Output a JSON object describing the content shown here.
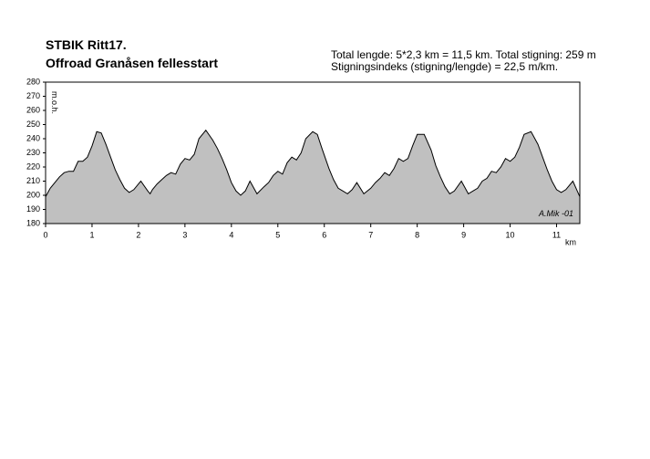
{
  "chart_data": {
    "type": "area",
    "title": "STBIK Ritt17.",
    "subtitle": "Offroad Granåsen fellesstart",
    "notes": [
      "Total lengde: 5*2,3 km = 11,5 km. Total stigning: 259 m",
      "Stigningsindeks (stigning/lengde) = 22,5 m/km."
    ],
    "annotation": "A.Mik -01",
    "xlabel": "km",
    "ylabel": "m.o.h.",
    "color": "#c0c0c0",
    "x": [
      0,
      0.1,
      0.2,
      0.3,
      0.4,
      0.5,
      0.6,
      0.7,
      0.8,
      0.9,
      1.0,
      1.1,
      1.2,
      1.3,
      1.4,
      1.5,
      1.6,
      1.7,
      1.8,
      1.9,
      2.0,
      2.05,
      2.2,
      2.25,
      2.3,
      2.4,
      2.5,
      2.6,
      2.7,
      2.8,
      2.9,
      3.0,
      3.1,
      3.2,
      3.3,
      3.45,
      3.6,
      3.7,
      3.8,
      3.9,
      4.0,
      4.1,
      4.2,
      4.3,
      4.4,
      4.55,
      4.7,
      4.8,
      4.9,
      5.0,
      5.1,
      5.2,
      5.3,
      5.4,
      5.5,
      5.6,
      5.75,
      5.85,
      5.95,
      6.1,
      6.2,
      6.3,
      6.4,
      6.5,
      6.6,
      6.7,
      6.85,
      7.0,
      7.1,
      7.2,
      7.3,
      7.4,
      7.5,
      7.6,
      7.7,
      7.8,
      7.9,
      8.0,
      8.15,
      8.3,
      8.4,
      8.5,
      8.6,
      8.7,
      8.8,
      8.95,
      9.1,
      9.2,
      9.3,
      9.4,
      9.5,
      9.6,
      9.7,
      9.8,
      9.9,
      10.0,
      10.1,
      10.2,
      10.3,
      10.45,
      10.6,
      10.7,
      10.8,
      10.9,
      11.0,
      11.1,
      11.2,
      11.35,
      11.5
    ],
    "y": [
      199,
      205,
      209,
      213,
      216,
      217,
      217,
      224,
      224,
      227,
      235,
      245,
      244,
      236,
      227,
      218,
      211,
      205,
      202,
      204,
      208,
      210,
      203,
      201,
      204,
      208,
      211,
      214,
      216,
      215,
      222,
      226,
      225,
      229,
      240,
      246,
      239,
      233,
      226,
      218,
      209,
      203,
      200,
      203,
      210,
      201,
      206,
      209,
      214,
      217,
      215,
      223,
      227,
      225,
      230,
      240,
      245,
      243,
      233,
      219,
      211,
      205,
      203,
      201,
      204,
      209,
      201,
      205,
      209,
      212,
      216,
      214,
      219,
      226,
      224,
      226,
      235,
      243,
      243,
      232,
      221,
      213,
      206,
      201,
      203,
      210,
      201,
      203,
      205,
      210,
      212,
      217,
      216,
      220,
      226,
      224,
      227,
      234,
      243,
      245,
      236,
      227,
      218,
      210,
      204,
      202,
      204,
      210,
      199
    ],
    "xlim": [
      0,
      11.5
    ],
    "ylim": [
      180,
      280
    ],
    "xticks": [
      0,
      1,
      2,
      3,
      4,
      5,
      6,
      7,
      8,
      9,
      10,
      11
    ],
    "yticks": [
      180,
      190,
      200,
      210,
      220,
      230,
      240,
      250,
      260,
      270,
      280
    ]
  }
}
